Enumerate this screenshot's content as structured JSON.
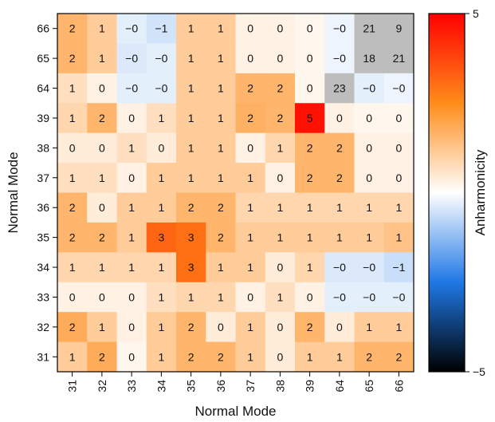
{
  "chart_data": {
    "type": "heatmap",
    "xlabel": "Normal Mode",
    "ylabel": "Normal Mode",
    "x_categories": [
      "31",
      "32",
      "33",
      "34",
      "35",
      "36",
      "37",
      "38",
      "39",
      "64",
      "65",
      "66"
    ],
    "y_categories": [
      "66",
      "65",
      "64",
      "39",
      "38",
      "37",
      "36",
      "35",
      "34",
      "33",
      "32",
      "31"
    ],
    "cell_labels": [
      [
        "2",
        "1",
        "−0",
        "−1",
        "1",
        "1",
        "0",
        "0",
        "0",
        "−0",
        "21",
        "9"
      ],
      [
        "2",
        "1",
        "−0",
        "−0",
        "1",
        "1",
        "0",
        "0",
        "0",
        "−0",
        "18",
        "21"
      ],
      [
        "1",
        "0",
        "−0",
        "−0",
        "1",
        "1",
        "2",
        "2",
        "0",
        "23",
        "−0",
        "−0"
      ],
      [
        "1",
        "2",
        "0",
        "1",
        "1",
        "1",
        "2",
        "2",
        "5",
        "0",
        "0",
        "0"
      ],
      [
        "0",
        "0",
        "1",
        "0",
        "1",
        "1",
        "0",
        "1",
        "2",
        "2",
        "0",
        "0"
      ],
      [
        "1",
        "1",
        "0",
        "1",
        "1",
        "1",
        "1",
        "0",
        "2",
        "2",
        "0",
        "0"
      ],
      [
        "2",
        "0",
        "1",
        "1",
        "2",
        "2",
        "1",
        "1",
        "1",
        "1",
        "1",
        "1"
      ],
      [
        "2",
        "2",
        "1",
        "3",
        "3",
        "2",
        "1",
        "1",
        "1",
        "1",
        "1",
        "1"
      ],
      [
        "1",
        "1",
        "1",
        "1",
        "3",
        "1",
        "1",
        "0",
        "1",
        "−0",
        "−0",
        "−1"
      ],
      [
        "0",
        "0",
        "0",
        "1",
        "1",
        "1",
        "0",
        "1",
        "0",
        "−0",
        "−0",
        "−0"
      ],
      [
        "2",
        "1",
        "0",
        "1",
        "2",
        "0",
        "1",
        "0",
        "2",
        "0",
        "1",
        "1"
      ],
      [
        "1",
        "2",
        "0",
        "1",
        "2",
        "2",
        "1",
        "0",
        "1",
        "1",
        "2",
        "2"
      ]
    ],
    "color_values": [
      [
        1.6,
        1.1,
        -0.3,
        -0.5,
        1.1,
        1.1,
        0.3,
        0.3,
        0.2,
        -0.2,
        null,
        null
      ],
      [
        1.6,
        1.1,
        -0.4,
        -0.3,
        1.1,
        1.1,
        0.3,
        0.3,
        0.2,
        -0.2,
        null,
        null
      ],
      [
        0.7,
        0.3,
        -0.3,
        -0.3,
        1.1,
        1.1,
        1.6,
        1.6,
        0.2,
        null,
        -0.3,
        -0.2
      ],
      [
        0.9,
        1.6,
        0.3,
        0.7,
        1.1,
        1.1,
        1.7,
        1.6,
        4.7,
        0.3,
        0.2,
        0.2
      ],
      [
        0.4,
        0.4,
        0.7,
        0.4,
        1.1,
        1.1,
        0.3,
        0.9,
        1.6,
        1.6,
        0.3,
        0.3
      ],
      [
        0.7,
        0.7,
        0.3,
        1.1,
        1.1,
        1.1,
        1.1,
        0.3,
        1.6,
        1.6,
        0.3,
        0.3
      ],
      [
        1.6,
        0.4,
        1.1,
        1.1,
        1.6,
        1.6,
        0.9,
        0.9,
        0.9,
        0.9,
        0.9,
        0.9
      ],
      [
        1.6,
        1.6,
        1.1,
        3.2,
        3.0,
        1.6,
        1.1,
        1.1,
        1.1,
        1.1,
        1.1,
        1.3
      ],
      [
        0.9,
        0.9,
        0.9,
        0.9,
        3.0,
        1.1,
        1.1,
        0.4,
        0.9,
        -0.4,
        -0.4,
        -0.6
      ],
      [
        0.3,
        0.3,
        0.3,
        0.7,
        0.9,
        0.9,
        0.3,
        0.7,
        0.3,
        -0.3,
        -0.3,
        -0.3
      ],
      [
        1.8,
        1.1,
        0.3,
        1.1,
        1.6,
        0.4,
        1.1,
        0.4,
        1.6,
        0.4,
        1.1,
        1.1
      ],
      [
        1.1,
        1.8,
        0.2,
        1.1,
        1.6,
        1.6,
        1.1,
        0.4,
        1.1,
        1.1,
        1.6,
        1.6
      ]
    ],
    "out_of_range_color": "#bdbdbd",
    "colorbar": {
      "label": "Anharmonicity",
      "min_label": "−5",
      "max_label": "5",
      "range": [
        -5,
        5
      ],
      "colors": [
        "#000000",
        "#1f78e6",
        "#ffffff",
        "#ff8c1a",
        "#ff0000"
      ]
    }
  }
}
